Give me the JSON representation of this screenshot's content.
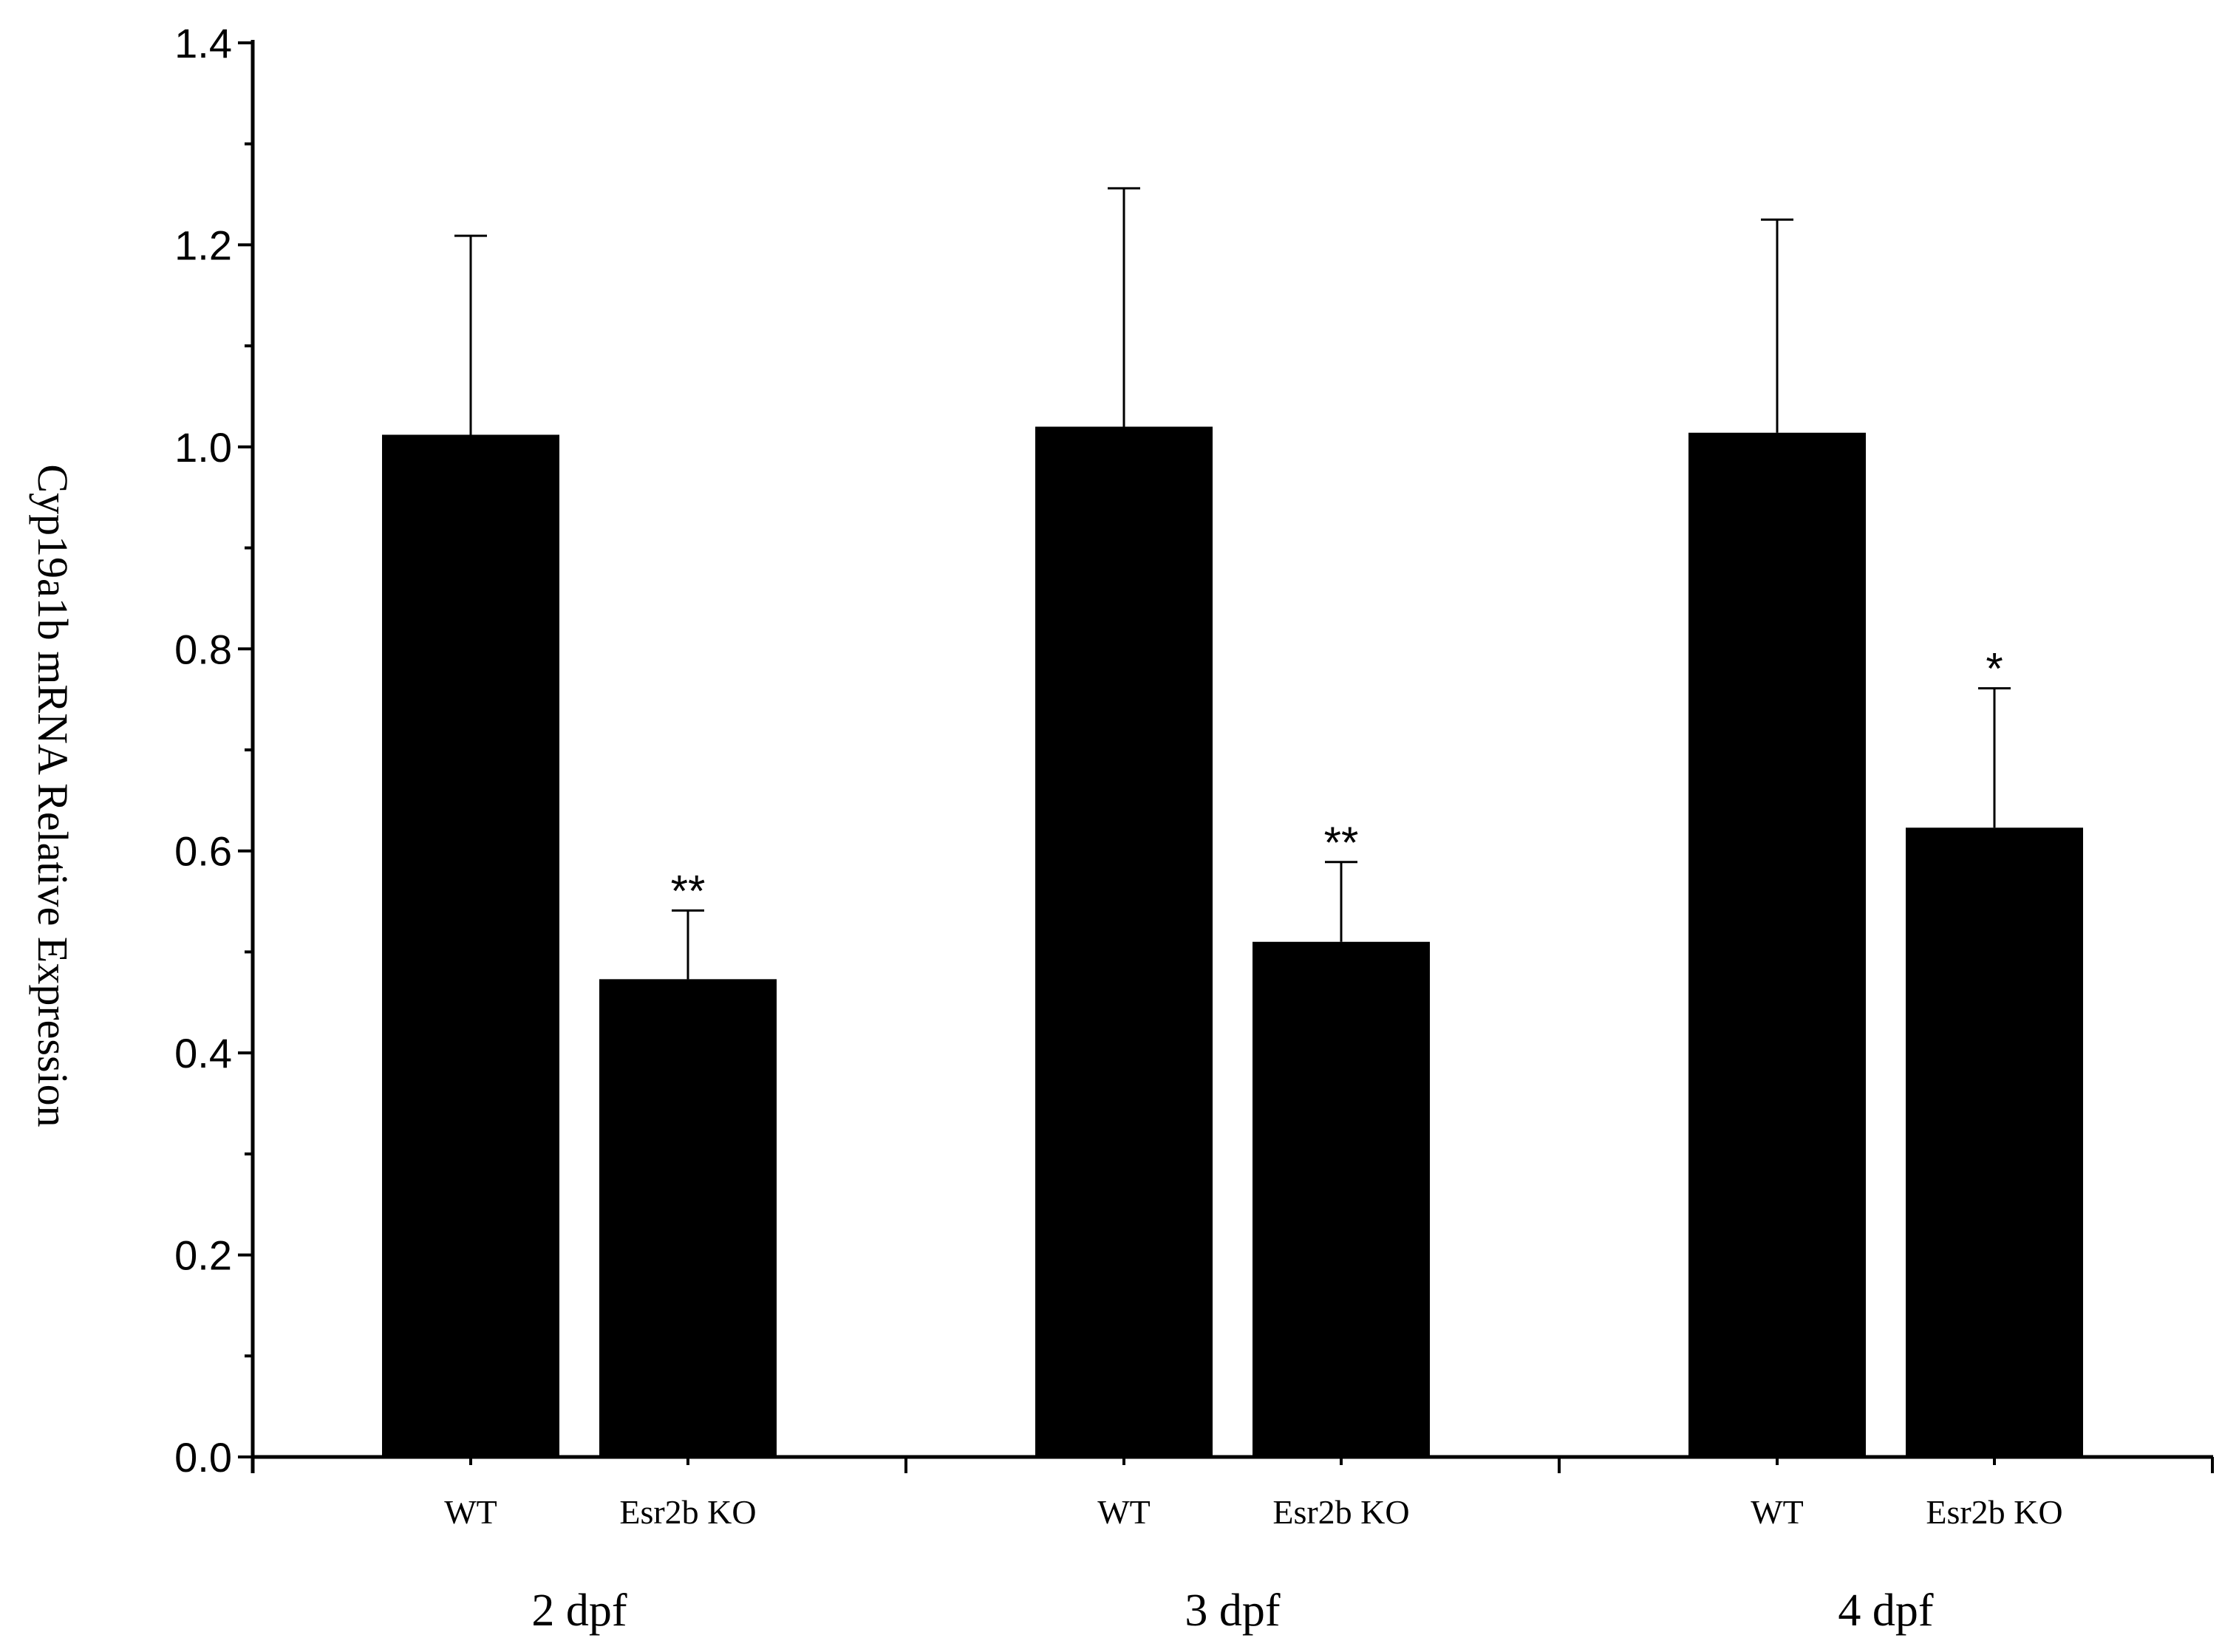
{
  "chart_data": {
    "type": "bar",
    "ylabel": "Cyp19a1b mRNA Relative Expression",
    "ylim": [
      0,
      1.4
    ],
    "yticks": [
      "0.0",
      "0.2",
      "0.4",
      "0.6",
      "0.8",
      "1.0",
      "1.2",
      "1.4"
    ],
    "grid": false,
    "legend": "none",
    "bar_color": "#000000",
    "groups": [
      {
        "label": "2 dpf",
        "bars": [
          {
            "category": "WT",
            "value": 1.012,
            "error": 0.197,
            "significance": ""
          },
          {
            "category": "Esr2b KO",
            "value": 0.473,
            "error": 0.068,
            "significance": "**"
          }
        ]
      },
      {
        "label": "3 dpf",
        "bars": [
          {
            "category": "WT",
            "value": 1.02,
            "error": 0.236,
            "significance": ""
          },
          {
            "category": "Esr2b KO",
            "value": 0.51,
            "error": 0.079,
            "significance": "**"
          }
        ]
      },
      {
        "label": "4 dpf",
        "bars": [
          {
            "category": "WT",
            "value": 1.014,
            "error": 0.211,
            "significance": ""
          },
          {
            "category": "Esr2b KO",
            "value": 0.623,
            "error": 0.138,
            "significance": "*"
          }
        ]
      }
    ]
  }
}
